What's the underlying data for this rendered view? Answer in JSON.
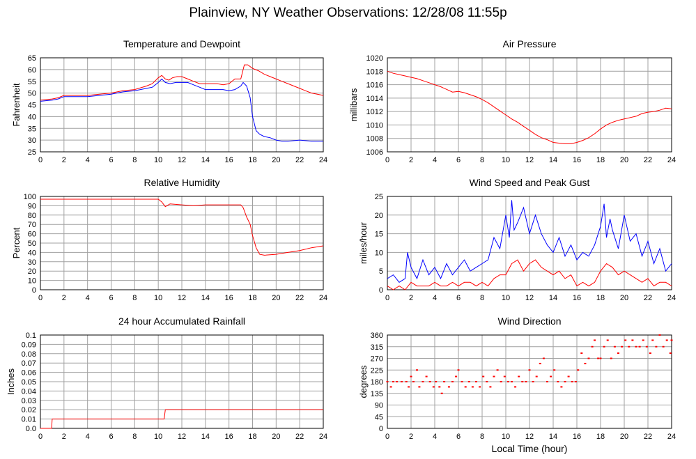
{
  "page": {
    "title": "Plainview, NY Weather Observations: 12/28/08 11:55p"
  },
  "colors": {
    "red": "#ff0000",
    "blue": "#0000ff",
    "grid": "#a0a0a0",
    "frame": "#000000"
  },
  "chart_data": [
    {
      "id": "temp",
      "type": "line",
      "title": "Temperature and Dewpoint",
      "ylabel": "Fahrenheit",
      "xlabel": "",
      "xlim": [
        0,
        24
      ],
      "ylim": [
        25,
        65
      ],
      "xticks": [
        0,
        2,
        4,
        6,
        8,
        10,
        12,
        14,
        16,
        18,
        20,
        22,
        24
      ],
      "yticks": [
        25,
        30,
        35,
        40,
        45,
        50,
        55,
        60,
        65
      ],
      "grid": true,
      "series": [
        {
          "color": "#ff0000",
          "style": "line",
          "x": [
            0,
            1,
            1.5,
            2,
            3,
            4,
            5,
            6,
            7,
            8,
            9,
            9.5,
            10,
            10.3,
            10.6,
            10.9,
            11.2,
            11.6,
            12,
            12.5,
            13,
            13.5,
            14,
            14.5,
            15,
            15.5,
            16,
            16.5,
            17,
            17.3,
            17.6,
            18,
            18.5,
            19,
            19.5,
            20,
            20.5,
            21,
            21.5,
            22,
            22.5,
            23,
            23.5,
            24
          ],
          "y": [
            47,
            47.5,
            48,
            49,
            49,
            49,
            49.5,
            50,
            51,
            51.5,
            53,
            54,
            56.5,
            57.5,
            56,
            55.5,
            56.5,
            57,
            57,
            56,
            55,
            54,
            54,
            54,
            54,
            53.5,
            54,
            56,
            56,
            62,
            62,
            60.5,
            59.5,
            58,
            57,
            56,
            55,
            54,
            53,
            52,
            51,
            50,
            49.5,
            49
          ]
        },
        {
          "color": "#0000ff",
          "style": "line",
          "x": [
            0,
            1,
            1.5,
            2,
            3,
            4,
            5,
            6,
            7,
            8,
            9,
            9.5,
            10,
            10.3,
            10.6,
            11,
            11.5,
            12,
            12.5,
            13,
            13.5,
            14,
            14.5,
            15,
            15.5,
            16,
            16.5,
            17,
            17.2,
            17.5,
            17.8,
            18,
            18.3,
            18.6,
            19,
            19.5,
            20,
            20.5,
            21,
            22,
            23,
            24
          ],
          "y": [
            46.5,
            47,
            47.5,
            48.5,
            48.5,
            48.5,
            49,
            49.5,
            50.5,
            51,
            52,
            52.5,
            54.5,
            56,
            54.5,
            54,
            54.5,
            54.5,
            54.5,
            53.5,
            52.5,
            51.5,
            51.5,
            51.5,
            51.5,
            51,
            51.5,
            53,
            54.5,
            53,
            48,
            40,
            34,
            32.5,
            31.5,
            31,
            30,
            29.5,
            29.5,
            30,
            29.5,
            29.5
          ]
        }
      ]
    },
    {
      "id": "pressure",
      "type": "line",
      "title": "Air Pressure",
      "ylabel": "millibars",
      "xlabel": "",
      "xlim": [
        0,
        24
      ],
      "ylim": [
        1006,
        1020
      ],
      "xticks": [
        0,
        2,
        4,
        6,
        8,
        10,
        12,
        14,
        16,
        18,
        20,
        22,
        24
      ],
      "yticks": [
        1006,
        1008,
        1010,
        1012,
        1014,
        1016,
        1018,
        1020
      ],
      "grid": true,
      "series": [
        {
          "color": "#ff0000",
          "style": "line",
          "x": [
            0,
            0.5,
            1,
            1.5,
            2,
            2.5,
            3,
            3.5,
            4,
            4.5,
            5,
            5.5,
            6,
            6.5,
            7,
            7.5,
            8,
            8.5,
            9,
            9.5,
            10,
            10.5,
            11,
            11.5,
            12,
            12.5,
            13,
            13.5,
            14,
            14.5,
            15,
            15.5,
            16,
            16.5,
            17,
            17.5,
            18,
            18.5,
            19,
            19.5,
            20,
            20.5,
            21,
            21.5,
            22,
            22.5,
            23,
            23.5,
            24
          ],
          "y": [
            1018,
            1017.7,
            1017.5,
            1017.3,
            1017.1,
            1016.9,
            1016.6,
            1016.3,
            1016,
            1015.7,
            1015.3,
            1014.9,
            1015,
            1014.8,
            1014.5,
            1014.2,
            1013.8,
            1013.3,
            1012.7,
            1012.1,
            1011.5,
            1010.9,
            1010.4,
            1009.8,
            1009.2,
            1008.6,
            1008.1,
            1007.8,
            1007.4,
            1007.3,
            1007.2,
            1007.2,
            1007.4,
            1007.7,
            1008.1,
            1008.7,
            1009.4,
            1010,
            1010.4,
            1010.7,
            1010.9,
            1011.1,
            1011.3,
            1011.7,
            1011.9,
            1012,
            1012.2,
            1012.5,
            1012.4
          ]
        }
      ]
    },
    {
      "id": "humidity",
      "type": "line",
      "title": "Relative Humidity",
      "ylabel": "Percent",
      "xlabel": "",
      "xlim": [
        0,
        24
      ],
      "ylim": [
        0,
        100
      ],
      "xticks": [
        0,
        2,
        4,
        6,
        8,
        10,
        12,
        14,
        16,
        18,
        20,
        22,
        24
      ],
      "yticks": [
        0,
        10,
        20,
        30,
        40,
        50,
        60,
        70,
        80,
        90,
        100
      ],
      "grid": true,
      "series": [
        {
          "color": "#ff0000",
          "style": "line",
          "x": [
            0,
            1,
            2,
            4,
            6,
            8,
            9,
            10,
            10.3,
            10.6,
            11,
            12,
            13,
            14,
            15,
            16,
            17,
            17.2,
            17.5,
            17.8,
            18,
            18.3,
            18.6,
            19,
            20,
            21,
            22,
            23,
            24
          ],
          "y": [
            97,
            97,
            97,
            97,
            97,
            97,
            97,
            97,
            94,
            89,
            92,
            91,
            90,
            91,
            91,
            91,
            91,
            88,
            78,
            70,
            58,
            45,
            38,
            37,
            38,
            40,
            42,
            45,
            47
          ]
        }
      ]
    },
    {
      "id": "wind",
      "type": "line",
      "title": "Wind Speed and Peak Gust",
      "ylabel": "miles/hour",
      "xlabel": "",
      "xlim": [
        0,
        24
      ],
      "ylim": [
        0,
        25
      ],
      "xticks": [
        0,
        2,
        4,
        6,
        8,
        10,
        12,
        14,
        16,
        18,
        20,
        22,
        24
      ],
      "yticks": [
        0,
        5,
        10,
        15,
        20,
        25
      ],
      "grid": true,
      "series": [
        {
          "color": "#0000ff",
          "style": "line",
          "x": [
            0,
            0.5,
            1,
            1.5,
            1.7,
            2,
            2.5,
            3,
            3.5,
            4,
            4.5,
            5,
            5.5,
            6,
            6.5,
            7,
            7.5,
            8,
            8.5,
            9,
            9.5,
            10,
            10.3,
            10.5,
            10.7,
            11,
            11.5,
            12,
            12.5,
            13,
            13.5,
            14,
            14.5,
            15,
            15.5,
            16,
            16.5,
            17,
            17.5,
            18,
            18.3,
            18.5,
            18.8,
            19,
            19.5,
            20,
            20.5,
            21,
            21.5,
            22,
            22.5,
            23,
            23.5,
            24
          ],
          "y": [
            3,
            4,
            2,
            3,
            10,
            6,
            3,
            8,
            4,
            6,
            3,
            7,
            4,
            6,
            8,
            5,
            6,
            7,
            8,
            14,
            11,
            20,
            14,
            24,
            16,
            18,
            22,
            15,
            20,
            15,
            12,
            10,
            14,
            9,
            12,
            8,
            10,
            9,
            12,
            17,
            23,
            14,
            19,
            16,
            11,
            20,
            13,
            15,
            9,
            13,
            7,
            11,
            5,
            7
          ]
        },
        {
          "color": "#ff0000",
          "style": "line",
          "x": [
            0,
            0.5,
            1,
            1.5,
            2,
            2.5,
            3,
            3.5,
            4,
            4.5,
            5,
            5.5,
            6,
            6.5,
            7,
            7.5,
            8,
            8.5,
            9,
            9.5,
            10,
            10.5,
            11,
            11.5,
            12,
            12.5,
            13,
            13.5,
            14,
            14.5,
            15,
            15.5,
            16,
            16.5,
            17,
            17.5,
            18,
            18.5,
            19,
            19.5,
            20,
            20.5,
            21,
            21.5,
            22,
            22.5,
            23,
            23.5,
            24
          ],
          "y": [
            1,
            0,
            1,
            0,
            2,
            1,
            1,
            1,
            2,
            1,
            1,
            2,
            1,
            2,
            2,
            1,
            2,
            1,
            3,
            4,
            4,
            7,
            8,
            5,
            7,
            8,
            6,
            5,
            4,
            5,
            3,
            4,
            1,
            2,
            1,
            2,
            5,
            7,
            6,
            4,
            5,
            4,
            3,
            2,
            3,
            1,
            2,
            2,
            1
          ]
        }
      ]
    },
    {
      "id": "rain",
      "type": "line",
      "title": "24 hour Accumulated Rainfall",
      "ylabel": "Inches",
      "xlabel": "",
      "xlim": [
        0,
        24
      ],
      "ylim": [
        0,
        0.1
      ],
      "xticks": [
        0,
        2,
        4,
        6,
        8,
        10,
        12,
        14,
        16,
        18,
        20,
        22,
        24
      ],
      "yticks": [
        "0.0",
        "0.01",
        "0.02",
        "0.03",
        "0.04",
        "0.05",
        "0.06",
        "0.07",
        "0.08",
        "0.09",
        "0.1"
      ],
      "grid": true,
      "series": [
        {
          "color": "#ff0000",
          "style": "line",
          "x": [
            0,
            0.95,
            1.0,
            10.5,
            10.6,
            24
          ],
          "y": [
            0,
            0,
            0.01,
            0.01,
            0.02,
            0.02
          ]
        }
      ]
    },
    {
      "id": "direction",
      "type": "scatter",
      "title": "Wind Direction",
      "ylabel": "degrees",
      "xlabel": "Local Time (hour)",
      "xlim": [
        0,
        24
      ],
      "ylim": [
        0,
        360
      ],
      "xticks": [
        0,
        2,
        4,
        6,
        8,
        10,
        12,
        14,
        16,
        18,
        20,
        22,
        24
      ],
      "yticks": [
        0,
        45,
        90,
        135,
        180,
        225,
        270,
        315,
        360
      ],
      "grid": true,
      "series": [
        {
          "color": "#ff0000",
          "style": "points",
          "x": [
            0,
            0.3,
            0.5,
            0.8,
            1.2,
            1.6,
            1.8,
            2.0,
            2.2,
            2.5,
            2.7,
            3.0,
            3.3,
            3.6,
            3.9,
            4.1,
            4.4,
            4.6,
            4.8,
            5.2,
            5.5,
            5.8,
            6.0,
            6.3,
            6.6,
            6.9,
            7.2,
            7.5,
            7.8,
            8.1,
            8.4,
            8.7,
            9.0,
            9.3,
            9.6,
            9.9,
            10.2,
            10.5,
            10.8,
            11.1,
            11.4,
            11.7,
            12.0,
            12.3,
            12.6,
            12.9,
            13.2,
            13.5,
            13.8,
            14.1,
            14.4,
            14.7,
            15.0,
            15.3,
            15.6,
            15.9,
            16.1,
            16.4,
            16.7,
            17.0,
            17.3,
            17.5,
            17.8,
            18.0,
            18.3,
            18.6,
            18.9,
            19.2,
            19.5,
            19.8,
            20.1,
            20.4,
            20.7,
            21.0,
            21.3,
            21.6,
            21.9,
            22.2,
            22.4,
            22.7,
            23.0,
            23.3,
            23.6,
            23.9,
            24
          ],
          "y": [
            180,
            160,
            180,
            180,
            180,
            180,
            160,
            200,
            180,
            225,
            160,
            180,
            200,
            180,
            160,
            180,
            160,
            135,
            180,
            160,
            180,
            200,
            225,
            180,
            160,
            180,
            160,
            180,
            160,
            200,
            180,
            160,
            200,
            225,
            180,
            200,
            180,
            180,
            160,
            200,
            180,
            180,
            225,
            180,
            200,
            250,
            270,
            180,
            200,
            225,
            180,
            160,
            180,
            200,
            180,
            180,
            225,
            290,
            250,
            270,
            315,
            340,
            270,
            270,
            315,
            340,
            270,
            315,
            290,
            315,
            340,
            315,
            340,
            315,
            315,
            340,
            315,
            290,
            340,
            315,
            360,
            315,
            340,
            290,
            340
          ]
        }
      ]
    }
  ]
}
